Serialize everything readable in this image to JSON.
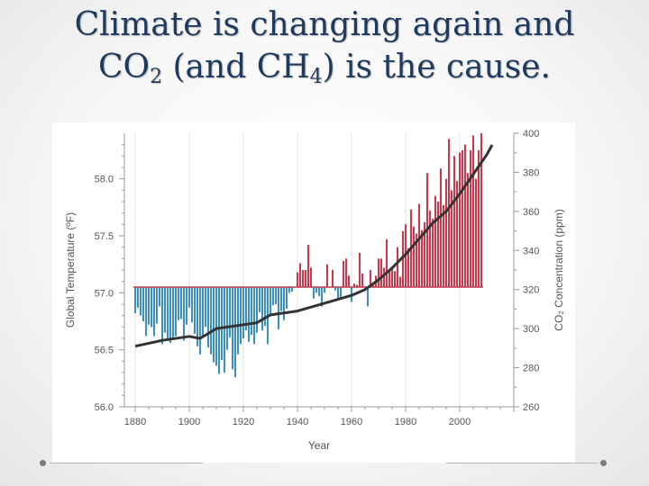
{
  "slide": {
    "title_line1": "Climate is changing again and",
    "title_co_prefix": "CO",
    "title_co_sub": "2",
    "title_mid": " (and CH",
    "title_ch_sub": "4",
    "title_end": ") is the cause."
  },
  "chart_data": {
    "type": "bar",
    "xlabel": "Year",
    "ylabel": "Global Temperature (ºF)",
    "y2label": "CO₂ Concentration (ppm)",
    "xlim": [
      1876,
      2020
    ],
    "ylim": [
      56.0,
      58.4
    ],
    "y2lim": [
      260,
      400
    ],
    "x_ticks": [
      1880,
      1900,
      1920,
      1940,
      1960,
      1980,
      2000
    ],
    "y_ticks": [
      56.0,
      56.5,
      57.0,
      57.5,
      58.0
    ],
    "y2_ticks": [
      260,
      280,
      300,
      320,
      340,
      360,
      380,
      400
    ],
    "baseline": 57.05,
    "colors": {
      "below": "#3f8fb8",
      "above": "#c23b4f",
      "co2": "#333333",
      "baseline": "#c23b4f"
    },
    "series": [
      {
        "kind": "bar",
        "start_year": 1880,
        "values": [
          56.82,
          56.87,
          56.8,
          56.75,
          56.62,
          56.72,
          56.7,
          56.62,
          56.73,
          56.88,
          56.55,
          56.65,
          56.59,
          56.56,
          56.6,
          56.62,
          56.76,
          56.77,
          56.58,
          56.72,
          56.87,
          56.74,
          56.64,
          56.53,
          56.46,
          56.62,
          56.7,
          56.52,
          56.46,
          56.39,
          56.36,
          56.29,
          56.41,
          56.3,
          56.5,
          56.61,
          56.33,
          56.26,
          56.46,
          56.55,
          56.6,
          56.67,
          56.57,
          56.63,
          56.55,
          56.65,
          56.83,
          56.67,
          56.71,
          56.55,
          56.8,
          56.89,
          56.9,
          56.68,
          56.84,
          56.76,
          56.86,
          57.0,
          57.01,
          57.05,
          57.18,
          57.26,
          57.2,
          57.2,
          57.42,
          57.22,
          56.95,
          57.0,
          56.97,
          56.88,
          57.0,
          57.25,
          57.05,
          57.2,
          57.02,
          56.95,
          56.95,
          57.28,
          57.3,
          57.15,
          56.92,
          57.08,
          57.07,
          57.35,
          57.17,
          57.04,
          56.88,
          57.2,
          57.08,
          57.15,
          57.3,
          57.3,
          57.22,
          57.47,
          57.2,
          57.22,
          57.19,
          57.4,
          57.14,
          57.54,
          57.6,
          57.39,
          57.73,
          57.58,
          57.52,
          57.78,
          57.55,
          57.62,
          58.05,
          57.72,
          57.65,
          57.85,
          57.8,
          58.09,
          57.77,
          58.0,
          58.35,
          57.9,
          58.2,
          57.98,
          58.23,
          58.25,
          58.3,
          58.05,
          58.25,
          58.38,
          58.0,
          58.25,
          58.4
        ]
      },
      {
        "kind": "line",
        "name": "CO2",
        "x": [
          1880,
          1890,
          1900,
          1904,
          1910,
          1920,
          1925,
          1930,
          1940,
          1950,
          1955,
          1960,
          1965,
          1970,
          1975,
          1980,
          1985,
          1990,
          1995,
          2000,
          2005,
          2010,
          2012
        ],
        "y": [
          291,
          294,
          296,
          295,
          300,
          302,
          303,
          307,
          309,
          313,
          315,
          317,
          320,
          325,
          331,
          338,
          346,
          354,
          360,
          369,
          379,
          389,
          394
        ]
      }
    ]
  }
}
